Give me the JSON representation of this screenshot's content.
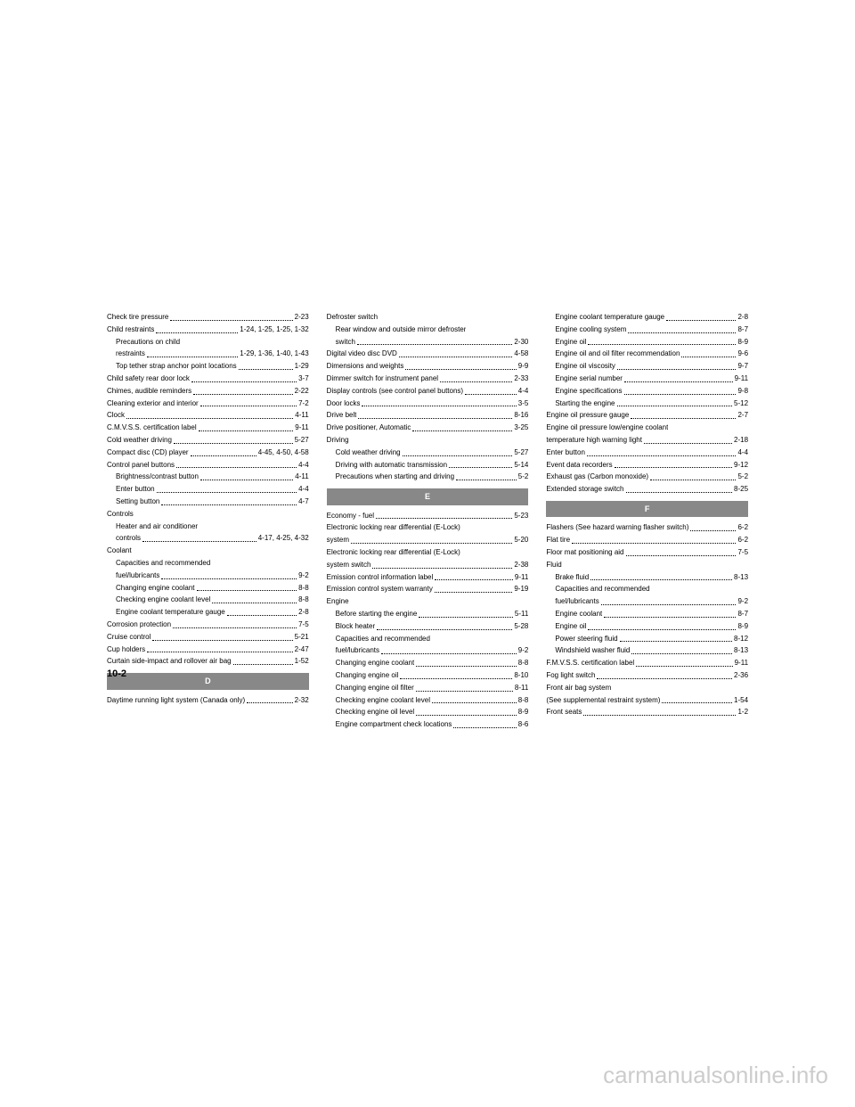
{
  "pageNumber": "10-2",
  "watermark": "carmanualsonline.info",
  "columns": [
    {
      "entries": [
        {
          "label": "Check tire pressure",
          "pages": "2-23",
          "indent": 0
        },
        {
          "label": "Child restraints",
          "pages": "1-24, 1-25, 1-25, 1-32",
          "indent": 0
        },
        {
          "label": "Precautions on child",
          "pages": "",
          "indent": 1
        },
        {
          "label": "restraints",
          "pages": "1-29, 1-36, 1-40, 1-43",
          "indent": 1
        },
        {
          "label": "Top tether strap anchor point locations",
          "pages": "1-29",
          "indent": 1
        },
        {
          "label": "Child safety rear door lock",
          "pages": "3-7",
          "indent": 0
        },
        {
          "label": "Chimes, audible reminders",
          "pages": "2-22",
          "indent": 0
        },
        {
          "label": "Cleaning exterior and interior",
          "pages": "7-2",
          "indent": 0
        },
        {
          "label": "Clock",
          "pages": "4-11",
          "indent": 0
        },
        {
          "label": "C.M.V.S.S. certification label",
          "pages": "9-11",
          "indent": 0
        },
        {
          "label": "Cold weather driving",
          "pages": "5-27",
          "indent": 0
        },
        {
          "label": "Compact disc (CD) player",
          "pages": "4-45, 4-50, 4-58",
          "indent": 0
        },
        {
          "label": "Control panel buttons",
          "pages": "4-4",
          "indent": 0
        },
        {
          "label": "Brightness/contrast button",
          "pages": "4-11",
          "indent": 1
        },
        {
          "label": "Enter button",
          "pages": "4-4",
          "indent": 1
        },
        {
          "label": "Setting button",
          "pages": "4-7",
          "indent": 1
        },
        {
          "label": "Controls",
          "pages": "",
          "indent": 0
        },
        {
          "label": "Heater and air conditioner",
          "pages": "",
          "indent": 1
        },
        {
          "label": "controls",
          "pages": "4-17, 4-25, 4-32",
          "indent": 1
        },
        {
          "label": "Coolant",
          "pages": "",
          "indent": 0
        },
        {
          "label": "Capacities and recommended",
          "pages": "",
          "indent": 1
        },
        {
          "label": "fuel/lubricants",
          "pages": "9-2",
          "indent": 1
        },
        {
          "label": "Changing engine coolant",
          "pages": "8-8",
          "indent": 1
        },
        {
          "label": "Checking engine coolant level",
          "pages": "8-8",
          "indent": 1
        },
        {
          "label": "Engine coolant temperature gauge",
          "pages": "2-8",
          "indent": 1
        },
        {
          "label": "Corrosion protection",
          "pages": "7-5",
          "indent": 0
        },
        {
          "label": "Cruise control",
          "pages": "5-21",
          "indent": 0
        },
        {
          "label": "Cup holders",
          "pages": "2-47",
          "indent": 0
        },
        {
          "label": "Curtain side-impact and rollover air bag",
          "pages": "1-52",
          "indent": 0
        }
      ],
      "sections": [
        {
          "letter": "D",
          "afterIndex": 28
        }
      ],
      "afterD": [
        {
          "label": "Daytime running light system (Canada only)",
          "pages": "2-32",
          "indent": 0
        }
      ]
    },
    {
      "entries": [
        {
          "label": "Defroster switch",
          "pages": "",
          "indent": 0
        },
        {
          "label": "Rear window and outside mirror defroster",
          "pages": "",
          "indent": 1
        },
        {
          "label": "switch",
          "pages": "2-30",
          "indent": 1
        },
        {
          "label": "Digital video disc DVD",
          "pages": "4-58",
          "indent": 0
        },
        {
          "label": "Dimensions and weights",
          "pages": "9-9",
          "indent": 0
        },
        {
          "label": "Dimmer switch for instrument panel",
          "pages": "2-33",
          "indent": 0
        },
        {
          "label": "Display controls (see control panel buttons)",
          "pages": "4-4",
          "indent": 0
        },
        {
          "label": "Door locks",
          "pages": "3-5",
          "indent": 0
        },
        {
          "label": "Drive belt",
          "pages": "8-16",
          "indent": 0
        },
        {
          "label": "Drive positioner, Automatic",
          "pages": "3-25",
          "indent": 0
        },
        {
          "label": "Driving",
          "pages": "",
          "indent": 0
        },
        {
          "label": "Cold weather driving",
          "pages": "5-27",
          "indent": 1
        },
        {
          "label": "Driving with automatic transmission",
          "pages": "5-14",
          "indent": 1
        },
        {
          "label": "Precautions when starting and driving",
          "pages": "5-2",
          "indent": 1
        }
      ],
      "sections": [
        {
          "letter": "E",
          "afterIndex": 13
        }
      ],
      "afterE": [
        {
          "label": "Economy - fuel",
          "pages": "5-23",
          "indent": 0
        },
        {
          "label": "Electronic locking rear differential (E-Lock)",
          "pages": "",
          "indent": 0
        },
        {
          "label": "system",
          "pages": "5-20",
          "indent": 0
        },
        {
          "label": "Electronic locking rear differential (E-Lock)",
          "pages": "",
          "indent": 0
        },
        {
          "label": "system switch",
          "pages": "2-38",
          "indent": 0
        },
        {
          "label": "Emission control information label",
          "pages": "9-11",
          "indent": 0
        },
        {
          "label": "Emission control system warranty",
          "pages": "9-19",
          "indent": 0
        },
        {
          "label": "Engine",
          "pages": "",
          "indent": 0
        },
        {
          "label": "Before starting the engine",
          "pages": "5-11",
          "indent": 1
        },
        {
          "label": "Block heater",
          "pages": "5-28",
          "indent": 1
        },
        {
          "label": "Capacities and recommended",
          "pages": "",
          "indent": 1
        },
        {
          "label": "fuel/lubricants",
          "pages": "9-2",
          "indent": 1
        },
        {
          "label": "Changing engine coolant",
          "pages": "8-8",
          "indent": 1
        },
        {
          "label": "Changing engine oil",
          "pages": "8-10",
          "indent": 1
        },
        {
          "label": "Changing engine oil filter",
          "pages": "8-11",
          "indent": 1
        },
        {
          "label": "Checking engine coolant level",
          "pages": "8-8",
          "indent": 1
        },
        {
          "label": "Checking engine oil level",
          "pages": "8-9",
          "indent": 1
        },
        {
          "label": "Engine compartment check locations",
          "pages": "8-6",
          "indent": 1
        }
      ]
    },
    {
      "entries": [
        {
          "label": "Engine coolant temperature gauge",
          "pages": "2-8",
          "indent": 1
        },
        {
          "label": "Engine cooling system",
          "pages": "8-7",
          "indent": 1
        },
        {
          "label": "Engine oil",
          "pages": "8-9",
          "indent": 1
        },
        {
          "label": "Engine oil and oil filter recommendation",
          "pages": "9-6",
          "indent": 1
        },
        {
          "label": "Engine oil viscosity",
          "pages": "9-7",
          "indent": 1
        },
        {
          "label": "Engine serial number",
          "pages": "9-11",
          "indent": 1
        },
        {
          "label": "Engine specifications",
          "pages": "9-8",
          "indent": 1
        },
        {
          "label": "Starting the engine",
          "pages": "5-12",
          "indent": 1
        },
        {
          "label": "Engine oil pressure gauge",
          "pages": "2-7",
          "indent": 0
        },
        {
          "label": "Engine oil pressure low/engine coolant",
          "pages": "",
          "indent": 0
        },
        {
          "label": "temperature high warning light",
          "pages": "2-18",
          "indent": 0
        },
        {
          "label": "Enter button",
          "pages": "4-4",
          "indent": 0
        },
        {
          "label": "Event data recorders",
          "pages": "9-12",
          "indent": 0
        },
        {
          "label": "Exhaust gas (Carbon monoxide)",
          "pages": "5-2",
          "indent": 0
        },
        {
          "label": "Extended storage switch",
          "pages": "8-25",
          "indent": 0
        }
      ],
      "sections": [
        {
          "letter": "F",
          "afterIndex": 14
        }
      ],
      "afterF": [
        {
          "label": "Flashers (See hazard warning flasher switch)",
          "pages": "6-2",
          "indent": 0
        },
        {
          "label": "Flat tire",
          "pages": "6-2",
          "indent": 0
        },
        {
          "label": "Floor mat positioning aid",
          "pages": "7-5",
          "indent": 0
        },
        {
          "label": "Fluid",
          "pages": "",
          "indent": 0
        },
        {
          "label": "Brake fluid",
          "pages": "8-13",
          "indent": 1
        },
        {
          "label": "Capacities and recommended",
          "pages": "",
          "indent": 1
        },
        {
          "label": "fuel/lubricants",
          "pages": "9-2",
          "indent": 1
        },
        {
          "label": "Engine coolant",
          "pages": "8-7",
          "indent": 1
        },
        {
          "label": "Engine oil",
          "pages": "8-9",
          "indent": 1
        },
        {
          "label": "Power steering fluid",
          "pages": "8-12",
          "indent": 1
        },
        {
          "label": "Windshield washer fluid",
          "pages": "8-13",
          "indent": 1
        },
        {
          "label": "F.M.V.S.S. certification label",
          "pages": "9-11",
          "indent": 0
        },
        {
          "label": "Fog light switch",
          "pages": "2-36",
          "indent": 0
        },
        {
          "label": "Front air bag system",
          "pages": "",
          "indent": 0
        },
        {
          "label": "(See supplemental restraint system)",
          "pages": "1-54",
          "indent": 0
        },
        {
          "label": "Front seats",
          "pages": "1-2",
          "indent": 0
        }
      ]
    }
  ]
}
